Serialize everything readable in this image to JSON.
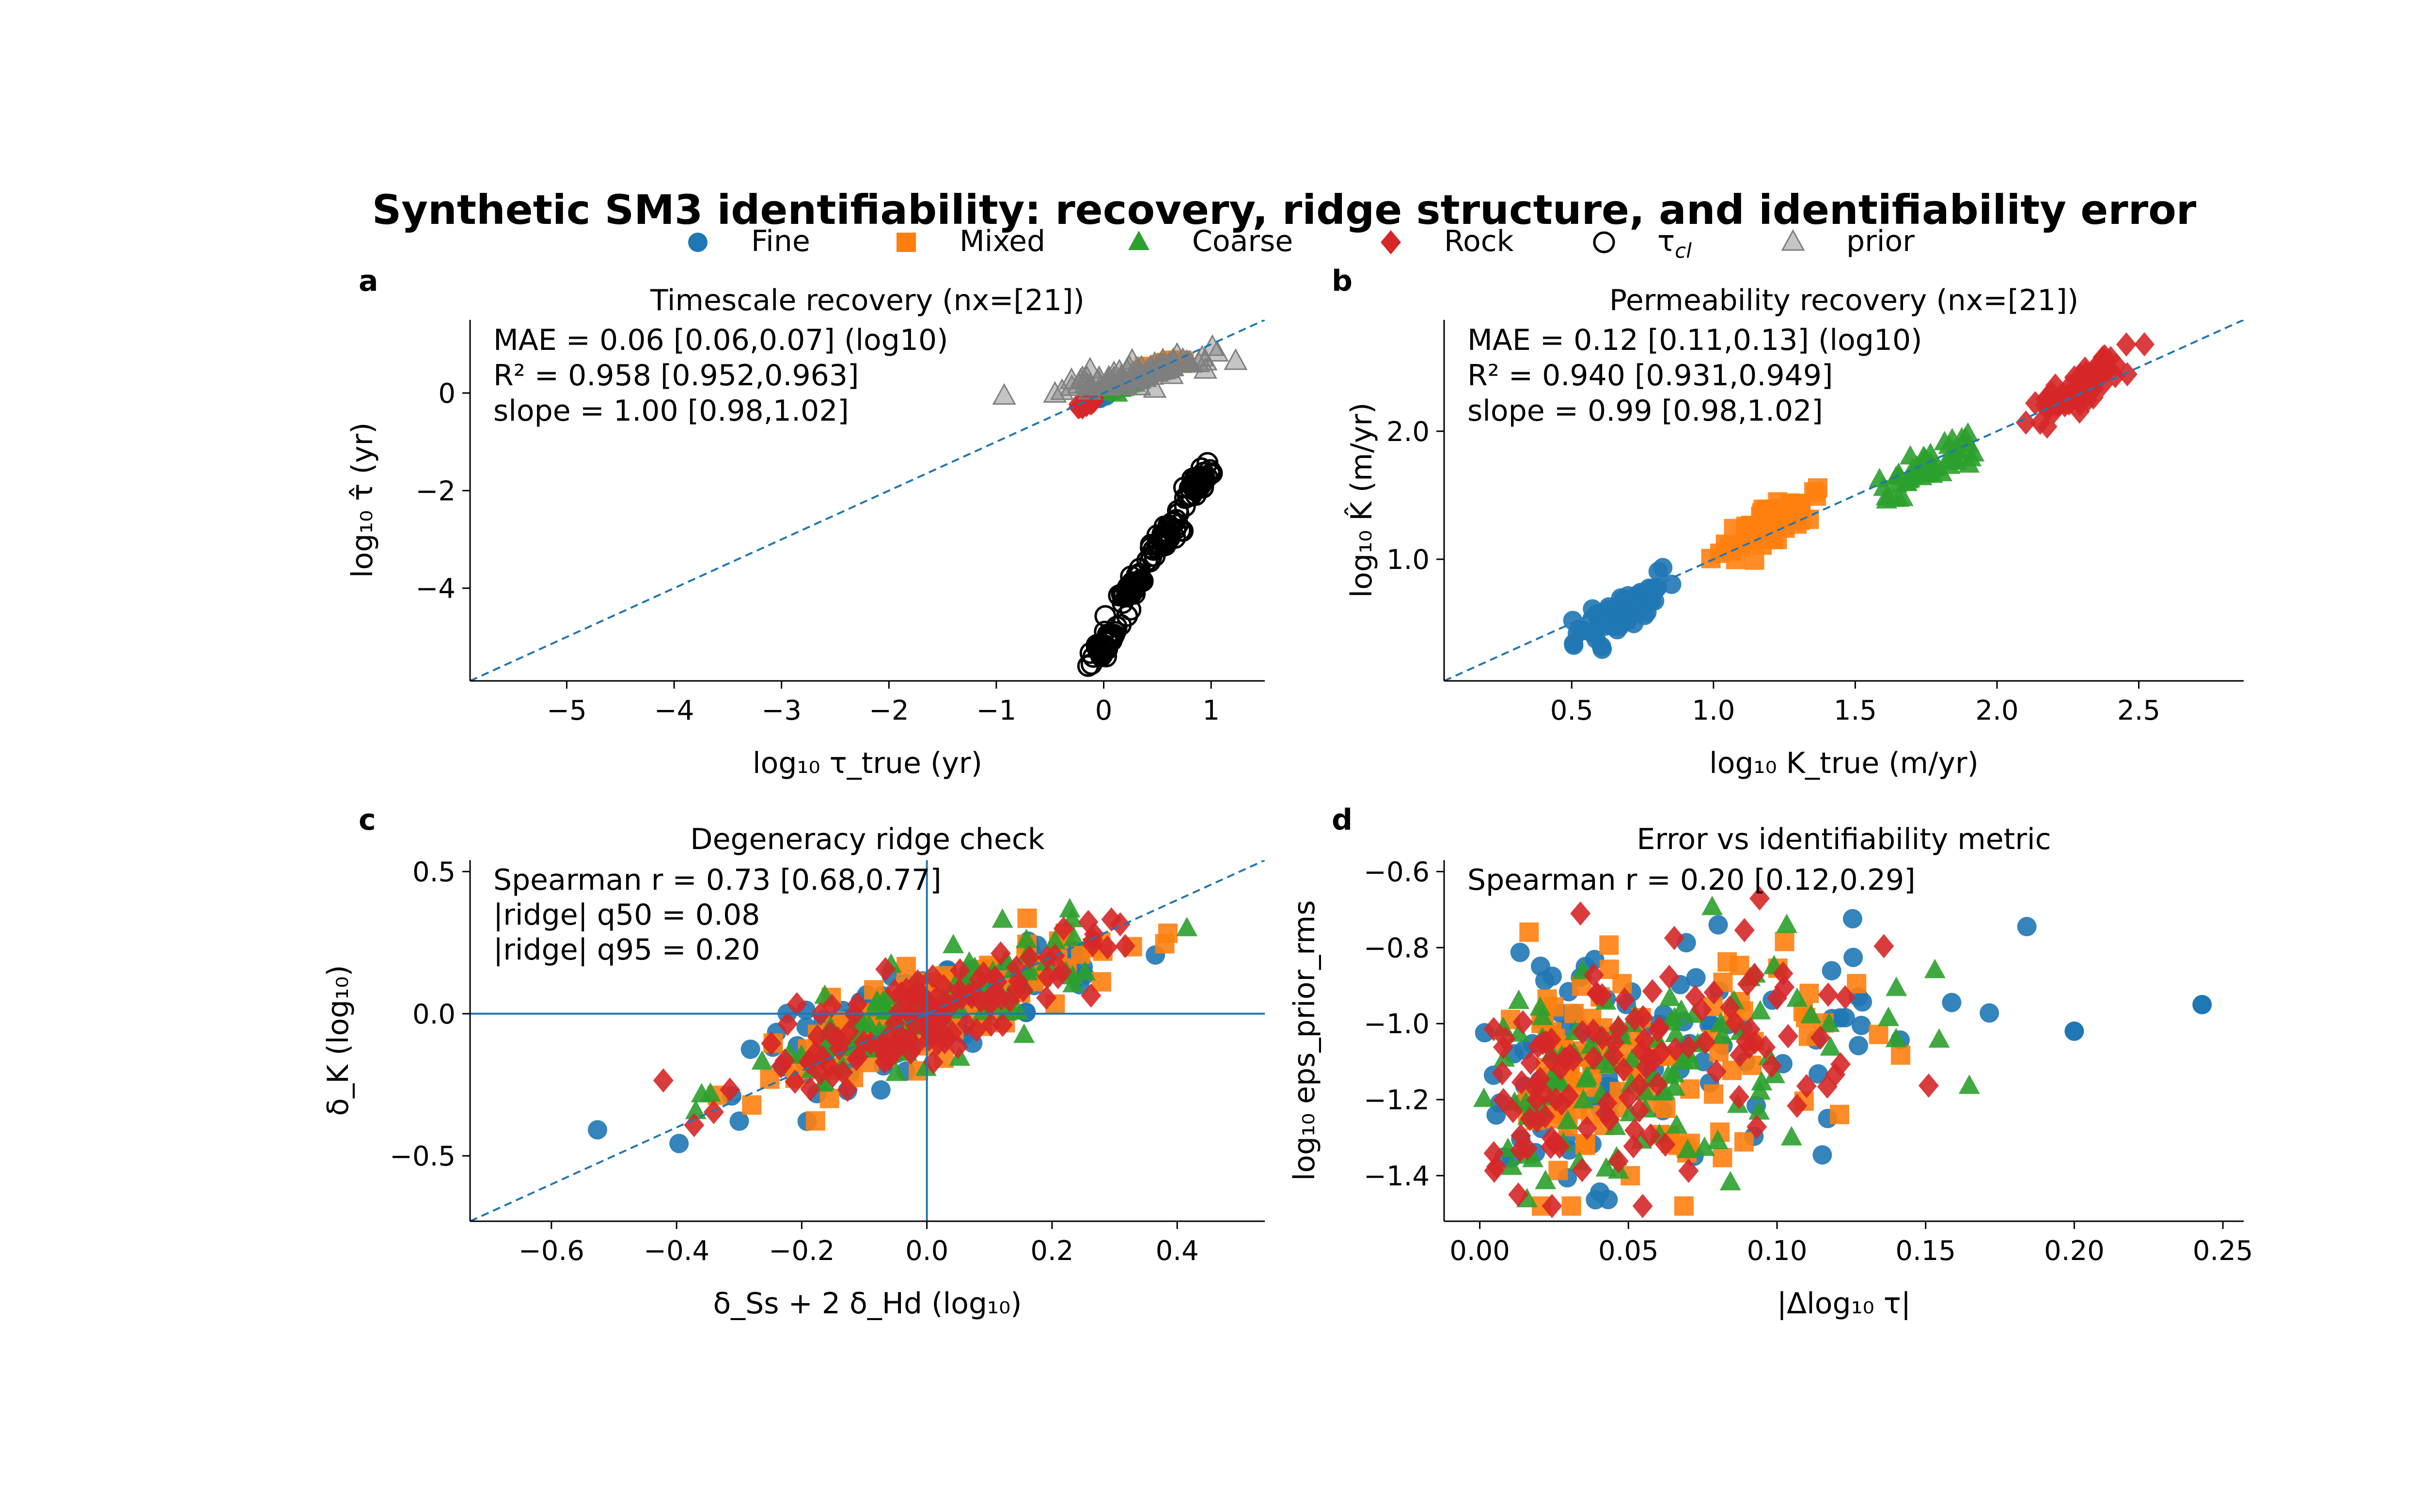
{
  "figure_title": "Synthetic SM3 identifiability: recovery, ridge structure, and identifiability error",
  "legend": {
    "entries": [
      {
        "label": "Fine",
        "marker": "circle",
        "color": "#1f77b4"
      },
      {
        "label": "Mixed",
        "marker": "square",
        "color": "#ff7f0e"
      },
      {
        "label": "Coarse",
        "marker": "triangle",
        "color": "#2ca02c"
      },
      {
        "label": "Rock",
        "marker": "diamond",
        "color": "#d62728"
      },
      {
        "label": "τ_cl",
        "marker": "open-circle",
        "color": "#000000"
      },
      {
        "label": "prior",
        "marker": "open-triangle",
        "color": "#7f7f7f"
      }
    ]
  },
  "colors": {
    "Fine": "#1f77b4",
    "Mixed": "#ff7f0e",
    "Coarse": "#2ca02c",
    "Rock": "#d62728",
    "prior": "#7f7f7f",
    "tau_cl": "#000000",
    "reference_line": "#1f77b4"
  },
  "panels": {
    "a": {
      "letter": "a",
      "title": "Timescale recovery (nx=[21])",
      "xlabel": "log₁₀ τ_true (yr)",
      "ylabel": "log₁₀ τ̂ (yr)",
      "ann": [
        "MAE = 0.06 [0.06,0.07] (log10)",
        "R² = 0.958 [0.952,0.963]",
        "slope = 1.00 [0.98,1.02]"
      ]
    },
    "b": {
      "letter": "b",
      "title": "Permeability recovery (nx=[21])",
      "xlabel": "log₁₀ K_true (m/yr)",
      "ylabel": "log₁₀ K̂ (m/yr)",
      "ann": [
        "MAE = 0.12 [0.11,0.13] (log10)",
        "R² = 0.940 [0.931,0.949]",
        "slope = 0.99 [0.98,1.02]"
      ]
    },
    "c": {
      "letter": "c",
      "title": "Degeneracy ridge check",
      "xlabel": "δ_Ss + 2 δ_Hd (log₁₀)",
      "ylabel": "δ_K (log₁₀)",
      "ann": [
        "Spearman r = 0.73 [0.68,0.77]",
        "|ridge| q50 = 0.08",
        "|ridge| q95 = 0.20"
      ]
    },
    "d": {
      "letter": "d",
      "title": "Error vs identifiability metric",
      "xlabel": "|Δlog₁₀ τ|",
      "ylabel": "log₁₀ eps_prior_rms",
      "ann": [
        "Spearman r = 0.20 [0.12,0.29]"
      ]
    }
  },
  "chart_data": [
    {
      "panel": "a",
      "type": "scatter",
      "title": "Timescale recovery (nx=[21])",
      "xlabel": "log10 τ_true (yr)",
      "ylabel": "log10 τ̂ (yr)",
      "xlim": [
        -5.9,
        1.5
      ],
      "ylim": [
        -5.9,
        1.5
      ],
      "xticks": [
        -5,
        -4,
        -3,
        -2,
        -1,
        0,
        1
      ],
      "yticks": [
        0,
        -2,
        -4
      ],
      "reference_line": "y = x",
      "clusters": [
        {
          "series": "Fine",
          "x_center": -0.05,
          "y_center": -0.05,
          "x_spread": 0.08,
          "y_spread": 0.08,
          "n": 40
        },
        {
          "series": "Mixed",
          "x_center": 0.55,
          "y_center": 0.55,
          "x_spread": 0.15,
          "y_spread": 0.1,
          "n": 40
        },
        {
          "series": "Coarse",
          "x_center": 0.1,
          "y_center": 0.1,
          "x_spread": 0.15,
          "y_spread": 0.1,
          "n": 40
        },
        {
          "series": "Rock",
          "x_center": -0.15,
          "y_center": -0.2,
          "x_spread": 0.06,
          "y_spread": 0.06,
          "n": 20
        },
        {
          "series": "prior",
          "x_center": 0.35,
          "y_center": 0.4,
          "x_spread": 0.45,
          "y_spread": 0.25,
          "n": 90
        },
        {
          "series": "τ_cl",
          "x_center": 0.0,
          "y_center": -5.2,
          "x_spread": 0.1,
          "y_spread": 0.3,
          "n": 40
        },
        {
          "series": "τ_cl",
          "x_center": 0.25,
          "y_center": -4.0,
          "x_spread": 0.1,
          "y_spread": 0.3,
          "n": 40
        },
        {
          "series": "τ_cl",
          "x_center": 0.6,
          "y_center": -2.9,
          "x_spread": 0.1,
          "y_spread": 0.3,
          "n": 40
        },
        {
          "series": "τ_cl",
          "x_center": 0.85,
          "y_center": -1.95,
          "x_spread": 0.1,
          "y_spread": 0.25,
          "n": 40
        }
      ]
    },
    {
      "panel": "b",
      "type": "scatter",
      "title": "Permeability recovery (nx=[21])",
      "xlabel": "log10 K_true (m/yr)",
      "ylabel": "log10 K̂ (m/yr)",
      "xlim": [
        0.05,
        2.87
      ],
      "ylim": [
        0.05,
        2.87
      ],
      "xticks": [
        0.5,
        1.0,
        1.5,
        2.0,
        2.5
      ],
      "yticks": [
        1,
        2
      ],
      "reference_line": "y = x",
      "clusters": [
        {
          "series": "Fine",
          "x_center": 0.68,
          "y_center": 0.6,
          "x_spread": 0.12,
          "y_spread": 0.18,
          "n": 80
        },
        {
          "series": "Mixed",
          "x_center": 1.2,
          "y_center": 1.25,
          "x_spread": 0.1,
          "y_spread": 0.15,
          "n": 70
        },
        {
          "series": "Coarse",
          "x_center": 1.75,
          "y_center": 1.7,
          "x_spread": 0.12,
          "y_spread": 0.15,
          "n": 60
        },
        {
          "series": "Rock",
          "x_center": 2.3,
          "y_center": 2.35,
          "x_spread": 0.1,
          "y_spread": 0.18,
          "n": 70
        }
      ]
    },
    {
      "panel": "c",
      "type": "scatter",
      "title": "Degeneracy ridge check",
      "xlabel": "δ_Ss + 2 δ_Hd (log10)",
      "ylabel": "δ_K (log10)",
      "xlim": [
        -0.73,
        0.54
      ],
      "ylim": [
        -0.73,
        0.54
      ],
      "xticks": [
        -0.6,
        -0.4,
        -0.2,
        0.0,
        0.2,
        0.4
      ],
      "yticks": [
        0.5,
        0.0,
        -0.5
      ],
      "reference_line": "y = x",
      "zero_lines": true,
      "spearman_r": 0.73,
      "series_n": {
        "Fine": 110,
        "Mixed": 110,
        "Coarse": 110,
        "Rock": 130
      }
    },
    {
      "panel": "d",
      "type": "scatter",
      "title": "Error vs identifiability metric",
      "xlabel": "|Δlog10 τ|",
      "ylabel": "log10 eps_prior_rms",
      "xlim": [
        -0.012,
        0.257
      ],
      "ylim": [
        -1.52,
        -0.57
      ],
      "xticks": [
        0.0,
        0.05,
        0.1,
        0.15,
        0.2,
        0.25
      ],
      "yticks": [
        -0.6,
        -0.8,
        -1.0,
        -1.2,
        -1.4
      ],
      "spearman_r": 0.2,
      "series_n": {
        "Fine": 110,
        "Mixed": 110,
        "Coarse": 110,
        "Rock": 120
      }
    }
  ]
}
